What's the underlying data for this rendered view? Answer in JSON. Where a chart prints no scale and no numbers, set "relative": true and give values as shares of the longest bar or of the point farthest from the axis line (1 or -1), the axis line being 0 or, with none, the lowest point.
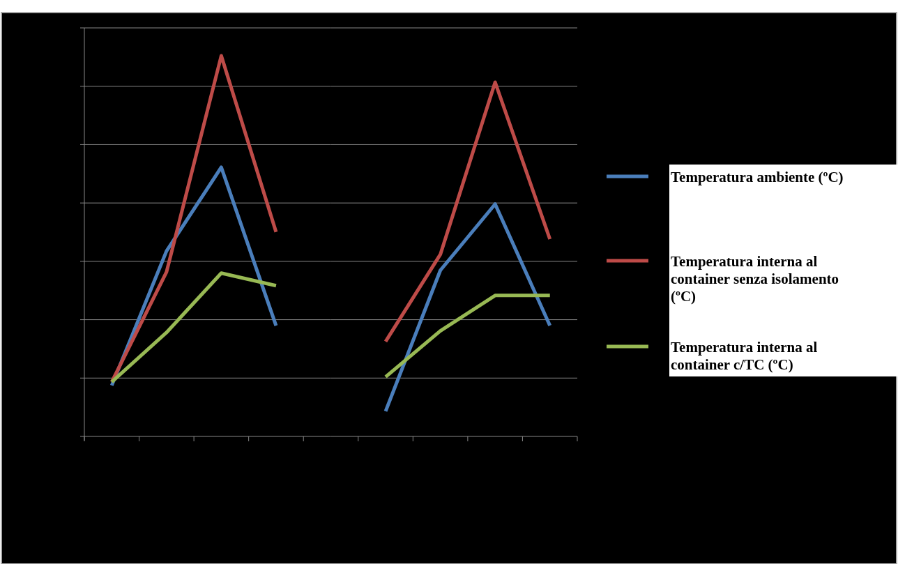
{
  "chart_data": [
    {
      "type": "line",
      "relative": true,
      "categories": [
        null,
        null,
        null,
        null
      ],
      "series": [
        {
          "color": "#4a7ebb",
          "values": [
            0.134,
            0.487,
            0.707,
            0.291
          ]
        },
        {
          "color": "#be4b48",
          "values": [
            0.143,
            0.432,
            1,
            0.537
          ]
        },
        {
          "color": "#98b954",
          "values": [
            0.143,
            0.273,
            0.429,
            0.396
          ]
        }
      ],
      "grid": "y",
      "marker": "none",
      "line_style": "solid"
    },
    {
      "type": "line",
      "relative": true,
      "categories": [
        null,
        null,
        null,
        null
      ],
      "series": [
        {
          "name": "Temperatura ambiente (ºC)",
          "color": "#4a7ebb",
          "values": [
            0.071,
            0.469,
            0.656,
            0.313
          ]
        },
        {
          "name": "Temperatura interna al container senza isolamento (ºC)",
          "color": "#be4b48",
          "values": [
            0.268,
            0.514,
            1,
            0.557
          ]
        },
        {
          "name": "Temperatura interna al container c/TC (ºC)",
          "color": "#98b954",
          "values": [
            0.168,
            0.298,
            0.398,
            0.398
          ]
        }
      ],
      "grid": "y",
      "legend": "right",
      "marker": "none",
      "line_style": "solid"
    }
  ]
}
